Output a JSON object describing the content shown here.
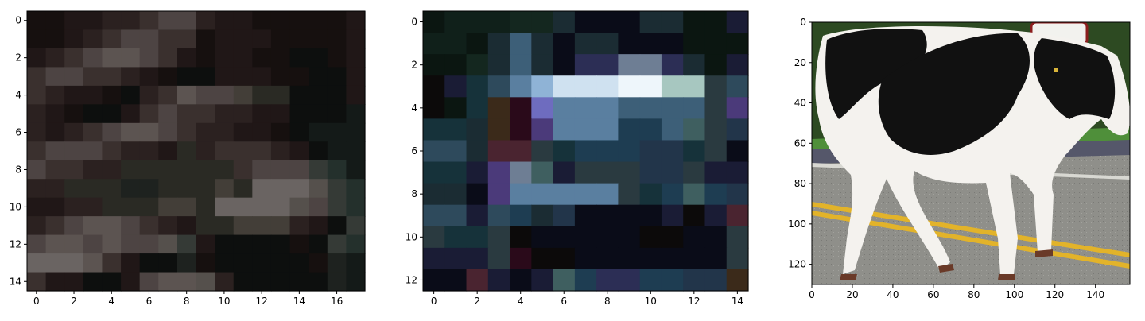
{
  "panels": [
    {
      "name": "panel-1",
      "kind": "pixel-grid",
      "xticks": [
        "0",
        "2",
        "4",
        "6",
        "8",
        "10",
        "12",
        "14",
        "16"
      ],
      "yticks": [
        "0",
        "2",
        "4",
        "6",
        "8",
        "10",
        "12",
        "14"
      ],
      "xlim": [
        -0.5,
        17.5
      ],
      "ylim": [
        14.5,
        -0.5
      ],
      "grid": false
    },
    {
      "name": "panel-2",
      "kind": "pixel-grid",
      "xticks": [
        "0",
        "2",
        "4",
        "6",
        "8",
        "10",
        "12",
        "14"
      ],
      "yticks": [
        "0",
        "2",
        "4",
        "6",
        "8",
        "10",
        "12"
      ],
      "xlim": [
        -0.5,
        14.5
      ],
      "ylim": [
        12.5,
        -0.5
      ],
      "grid": false
    },
    {
      "name": "panel-3",
      "kind": "photo",
      "xticks": [
        "0",
        "20",
        "40",
        "60",
        "80",
        "100",
        "120",
        "140"
      ],
      "yticks": [
        "0",
        "20",
        "40",
        "60",
        "80",
        "100",
        "120"
      ],
      "xlim": [
        0,
        157
      ],
      "ylim": [
        130,
        0
      ],
      "grid": false
    }
  ],
  "chart_data": [
    {
      "type": "heatmap",
      "rows": 15,
      "cols": 18,
      "xlim": [
        -0.5,
        17.5
      ],
      "ylim": [
        14.5,
        -0.5
      ],
      "grid": false,
      "palette": {
        "a": "#16100f",
        "b": "#201717",
        "c": "#2b2120",
        "d": "#3a302e",
        "e": "#4d4443",
        "f": "#5c5451",
        "g": "#433e38",
        "h": "#2a2a24",
        "i": "#1e221f",
        "j": "#141a18",
        "k": "#0d0f0e",
        "l": "#6a6462",
        "m": "#55504c",
        "n": "#353a36",
        "o": "#24302c"
      },
      "pixels": [
        "aabbccdeecbbaaaaab",
        "aabcdeeddabbbaaaab",
        "bcdeffedbabbaakkab",
        "deeddcbakkbbbaakkb",
        "dcbbakcdfeeghhkkkb",
        "cbakkbdeddccbbkkkj",
        "cbcdeffedccbbakjjj",
        "deeedccbhcdddcbkjj",
        "eddcchhhhhhdeeenoj",
        "cchhhiihhhghlllmno",
        "bbcchhhgghllllmeno",
        "cdeffedcbhhgggcbkn",
        "effefeemnbkkkkakno",
        "lllfdbkkiakkkkkaij",
        "dbbkkbeffmckkkkkij"
      ]
    },
    {
      "type": "heatmap",
      "rows": 13,
      "cols": 15,
      "xlim": [
        -0.5,
        14.5
      ],
      "ylim": [
        12.5,
        -0.5
      ],
      "grid": false,
      "palette": {
        "A": "#0b1611",
        "B": "#10201a",
        "C": "#14271f",
        "D": "#1b2c33",
        "E": "#22354a",
        "F": "#2e4a5c",
        "G": "#3d5f78",
        "H": "#5a7fa0",
        "I": "#8fb3d6",
        "J": "#cfe1f0",
        "K": "#eef6fb",
        "L": "#a7c7c0",
        "M": "#2a0a1a",
        "N": "#6e6cbf",
        "O": "#4b3a7a",
        "P": "#0a0c18",
        "Q": "#1a1c35",
        "R": "#2c2e55",
        "S": "#3b2a1a",
        "T": "#4a2430",
        "U": "#16323a",
        "V": "#6e7e94",
        "W": "#0c0a0a",
        "X": "#2a3a40",
        "Y": "#3f5f60",
        "Z": "#1e3d52"
      },
      "pixels": [
        "ABBBCCDPPPDDAAQ",
        "BBADGDPDDPPPAAA",
        "AACDGDPRRVVRDAQ",
        "WQUFHIJJJKKLLXF",
        "WAUSMNHHHGGGGXO",
        "UUDSMOHHHZZGYXE",
        "FFDTTXUZZZEEUXP",
        "UUQOVYQXXXEEXQQ",
        "DDPOHHHHHXUZYZE",
        "FFQFZDEPPPPQWQT",
        "XUUXWPPPPPWWPPX",
        "QQQXMWWPPPPPPPX",
        "PPTQPQYZRRZZEES"
      ]
    },
    {
      "type": "image",
      "subject": "black-and-white cow walking on asphalt road with yellow center lines",
      "xlim": [
        0,
        157
      ],
      "ylim": [
        130,
        0
      ],
      "grid": false
    }
  ]
}
